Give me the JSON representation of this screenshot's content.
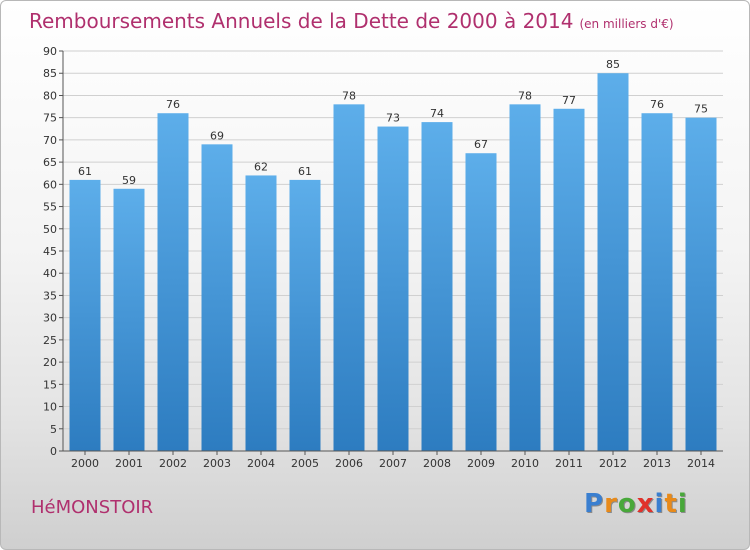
{
  "header": {
    "title": "Remboursements Annuels de la Dette de 2000 à 2014",
    "unit": "(en milliers d'€)"
  },
  "footer": {
    "commune": "HéMONSTOIR",
    "brand": {
      "letters": [
        "P",
        "r",
        "o",
        "x",
        "i",
        "t",
        "i"
      ],
      "colors": [
        "#3a7fd0",
        "#e88a1a",
        "#48a83a",
        "#e0322b",
        "#3a7fd0",
        "#e88a1a",
        "#48a83a"
      ]
    }
  },
  "colors": {
    "bar_top": "#5daeea",
    "bar_bottom": "#2d7cc0",
    "title": "#b0306e",
    "grid": "#d0d0d0",
    "axis": "#555555"
  },
  "chart_data": {
    "type": "bar",
    "title": "Remboursements Annuels de la Dette de 2000 à 2014",
    "subtitle": "(en milliers d'€)",
    "xlabel": "",
    "ylabel": "",
    "categories": [
      "2000",
      "2001",
      "2002",
      "2003",
      "2004",
      "2005",
      "2006",
      "2007",
      "2008",
      "2009",
      "2010",
      "2011",
      "2012",
      "2013",
      "2014"
    ],
    "values": [
      61,
      59,
      76,
      69,
      62,
      61,
      78,
      73,
      74,
      67,
      78,
      77,
      85,
      76,
      75
    ],
    "ylim": [
      0,
      90
    ],
    "yticks": [
      0,
      5,
      10,
      15,
      20,
      25,
      30,
      35,
      40,
      45,
      50,
      55,
      60,
      65,
      70,
      75,
      80,
      85,
      90
    ],
    "grid": true
  }
}
